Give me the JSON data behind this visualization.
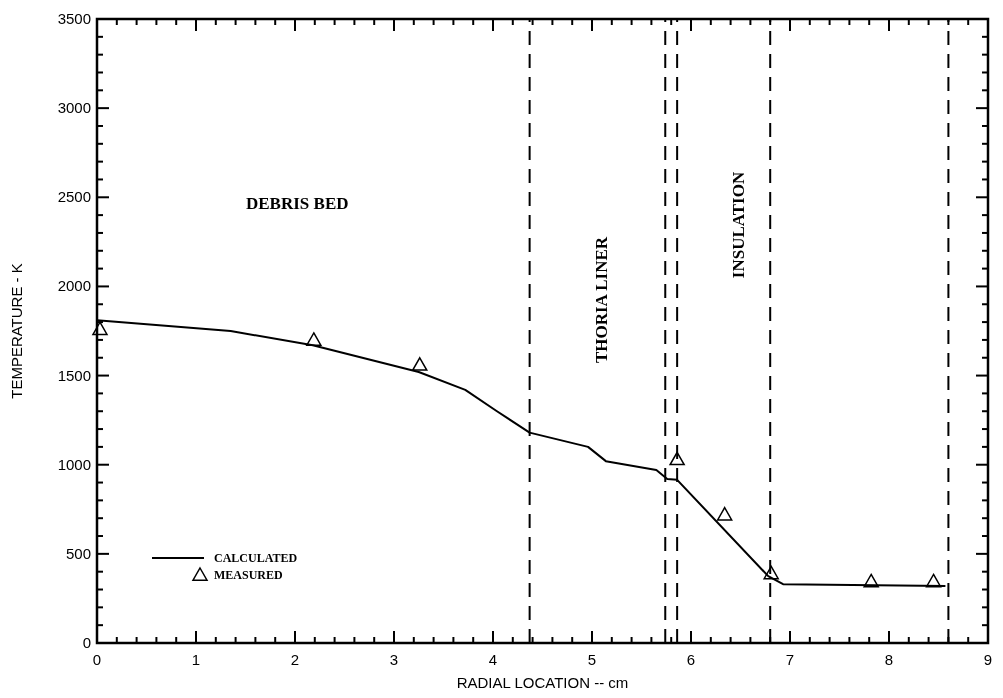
{
  "chart_data": {
    "type": "line",
    "xlabel": "RADIAL LOCATION -- cm",
    "ylabel": "TEMPERATURE - K",
    "xlim": [
      0,
      9
    ],
    "ylim": [
      0,
      3500
    ],
    "xticks": [
      0,
      {
        "value": 0.2,
        "label": null
      },
      {
        "value": 0.4,
        "label": null
      },
      {
        "value": 0.6,
        "label": null
      },
      {
        "value": 0.8,
        "label": null
      },
      1,
      {
        "value": 1.2,
        "label": null
      },
      {
        "value": 1.4,
        "label": null
      },
      {
        "value": 1.6,
        "label": null
      },
      {
        "value": 1.8,
        "label": null
      },
      2,
      {
        "value": 2.2,
        "label": null
      },
      {
        "value": 2.4,
        "label": null
      },
      {
        "value": 2.6,
        "label": null
      },
      {
        "value": 2.8,
        "label": null
      },
      3,
      {
        "value": 3.2,
        "label": null
      },
      {
        "value": 3.4,
        "label": null
      },
      {
        "value": 3.6,
        "label": null
      },
      {
        "value": 3.8,
        "label": null
      },
      4,
      {
        "value": 4.2,
        "label": null
      },
      {
        "value": 4.4,
        "label": null
      },
      {
        "value": 4.6,
        "label": null
      },
      {
        "value": 4.8,
        "label": null
      },
      5,
      {
        "value": 5.2,
        "label": null
      },
      {
        "value": 5.4,
        "label": null
      },
      {
        "value": 5.6,
        "label": null
      },
      {
        "value": 5.8,
        "label": null
      },
      6,
      {
        "value": 6.2,
        "label": null
      },
      {
        "value": 6.4,
        "label": null
      },
      {
        "value": 6.6,
        "label": null
      },
      {
        "value": 6.8,
        "label": null
      },
      7,
      {
        "value": 7.2,
        "label": null
      },
      {
        "value": 7.4,
        "label": null
      },
      {
        "value": 7.6,
        "label": null
      },
      {
        "value": 7.8,
        "label": null
      },
      8,
      {
        "value": 8.2,
        "label": null
      },
      {
        "value": 8.4,
        "label": null
      },
      {
        "value": 8.6,
        "label": null
      },
      {
        "value": 8.8,
        "label": null
      },
      9
    ],
    "yticks": [
      0,
      {
        "value": 100,
        "label": null
      },
      {
        "value": 200,
        "label": null
      },
      {
        "value": 300,
        "label": null
      },
      {
        "value": 400,
        "label": null
      },
      500,
      {
        "value": 600,
        "label": null
      },
      {
        "value": 700,
        "label": null
      },
      {
        "value": 800,
        "label": null
      },
      {
        "value": 900,
        "label": null
      },
      1000,
      {
        "value": 1100,
        "label": null
      },
      {
        "value": 1200,
        "label": null
      },
      {
        "value": 1300,
        "label": null
      },
      {
        "value": 1400,
        "label": null
      },
      1500,
      {
        "value": 1600,
        "label": null
      },
      {
        "value": 1700,
        "label": null
      },
      {
        "value": 1800,
        "label": null
      },
      {
        "value": 1900,
        "label": null
      },
      2000,
      {
        "value": 2100,
        "label": null
      },
      {
        "value": 2200,
        "label": null
      },
      {
        "value": 2300,
        "label": null
      },
      {
        "value": 2400,
        "label": null
      },
      2500,
      {
        "value": 2600,
        "label": null
      },
      {
        "value": 2700,
        "label": null
      },
      {
        "value": 2800,
        "label": null
      },
      {
        "value": 2900,
        "label": null
      },
      3000,
      {
        "value": 3100,
        "label": null
      },
      {
        "value": 3200,
        "label": null
      },
      {
        "value": 3300,
        "label": null
      },
      {
        "value": 3400,
        "label": null
      },
      3500
    ],
    "grid": false,
    "legend": "bottom left",
    "series": [
      {
        "name": "CALCULATED",
        "color": "#000000",
        "marker": "none",
        "line_style": "solid",
        "x": [
          0,
          1.35,
          2.18,
          3.25,
          3.72,
          4.04,
          4.37,
          4.96,
          5.14,
          5.65,
          5.76,
          5.86,
          6.78,
          6.93,
          8.57
        ],
        "values": [
          1810,
          1750,
          1670,
          1520,
          1420,
          1300,
          1180,
          1100,
          1020,
          970,
          920,
          915,
          375,
          330,
          320
        ]
      },
      {
        "name": "MEASURED",
        "type": "scatter",
        "color": "#000000",
        "marker": "triangle",
        "x": [
          0.03,
          2.19,
          3.26,
          5.86,
          6.34,
          6.81,
          7.82,
          8.45
        ],
        "values": [
          1760,
          1700,
          1560,
          1030,
          720,
          390,
          345,
          345
        ]
      }
    ],
    "ref_lines": [
      {
        "axis": "x",
        "value": 4.37,
        "label": null,
        "color": "#000000",
        "line_style": "dashed"
      },
      {
        "axis": "x",
        "value": 5.74,
        "label": null,
        "color": "#000000",
        "line_style": "dashed"
      },
      {
        "axis": "x",
        "value": 5.86,
        "label": null,
        "color": "#000000",
        "line_style": "dashed"
      },
      {
        "axis": "x",
        "value": 6.8,
        "label": null,
        "color": "#000000",
        "line_style": "dashed"
      },
      {
        "axis": "x",
        "value": 8.6,
        "label": null,
        "color": "#000000",
        "line_style": "dashed"
      }
    ],
    "annotations": [
      "DEBRIS BED",
      "THORIA LINER",
      "INSULATION"
    ]
  }
}
